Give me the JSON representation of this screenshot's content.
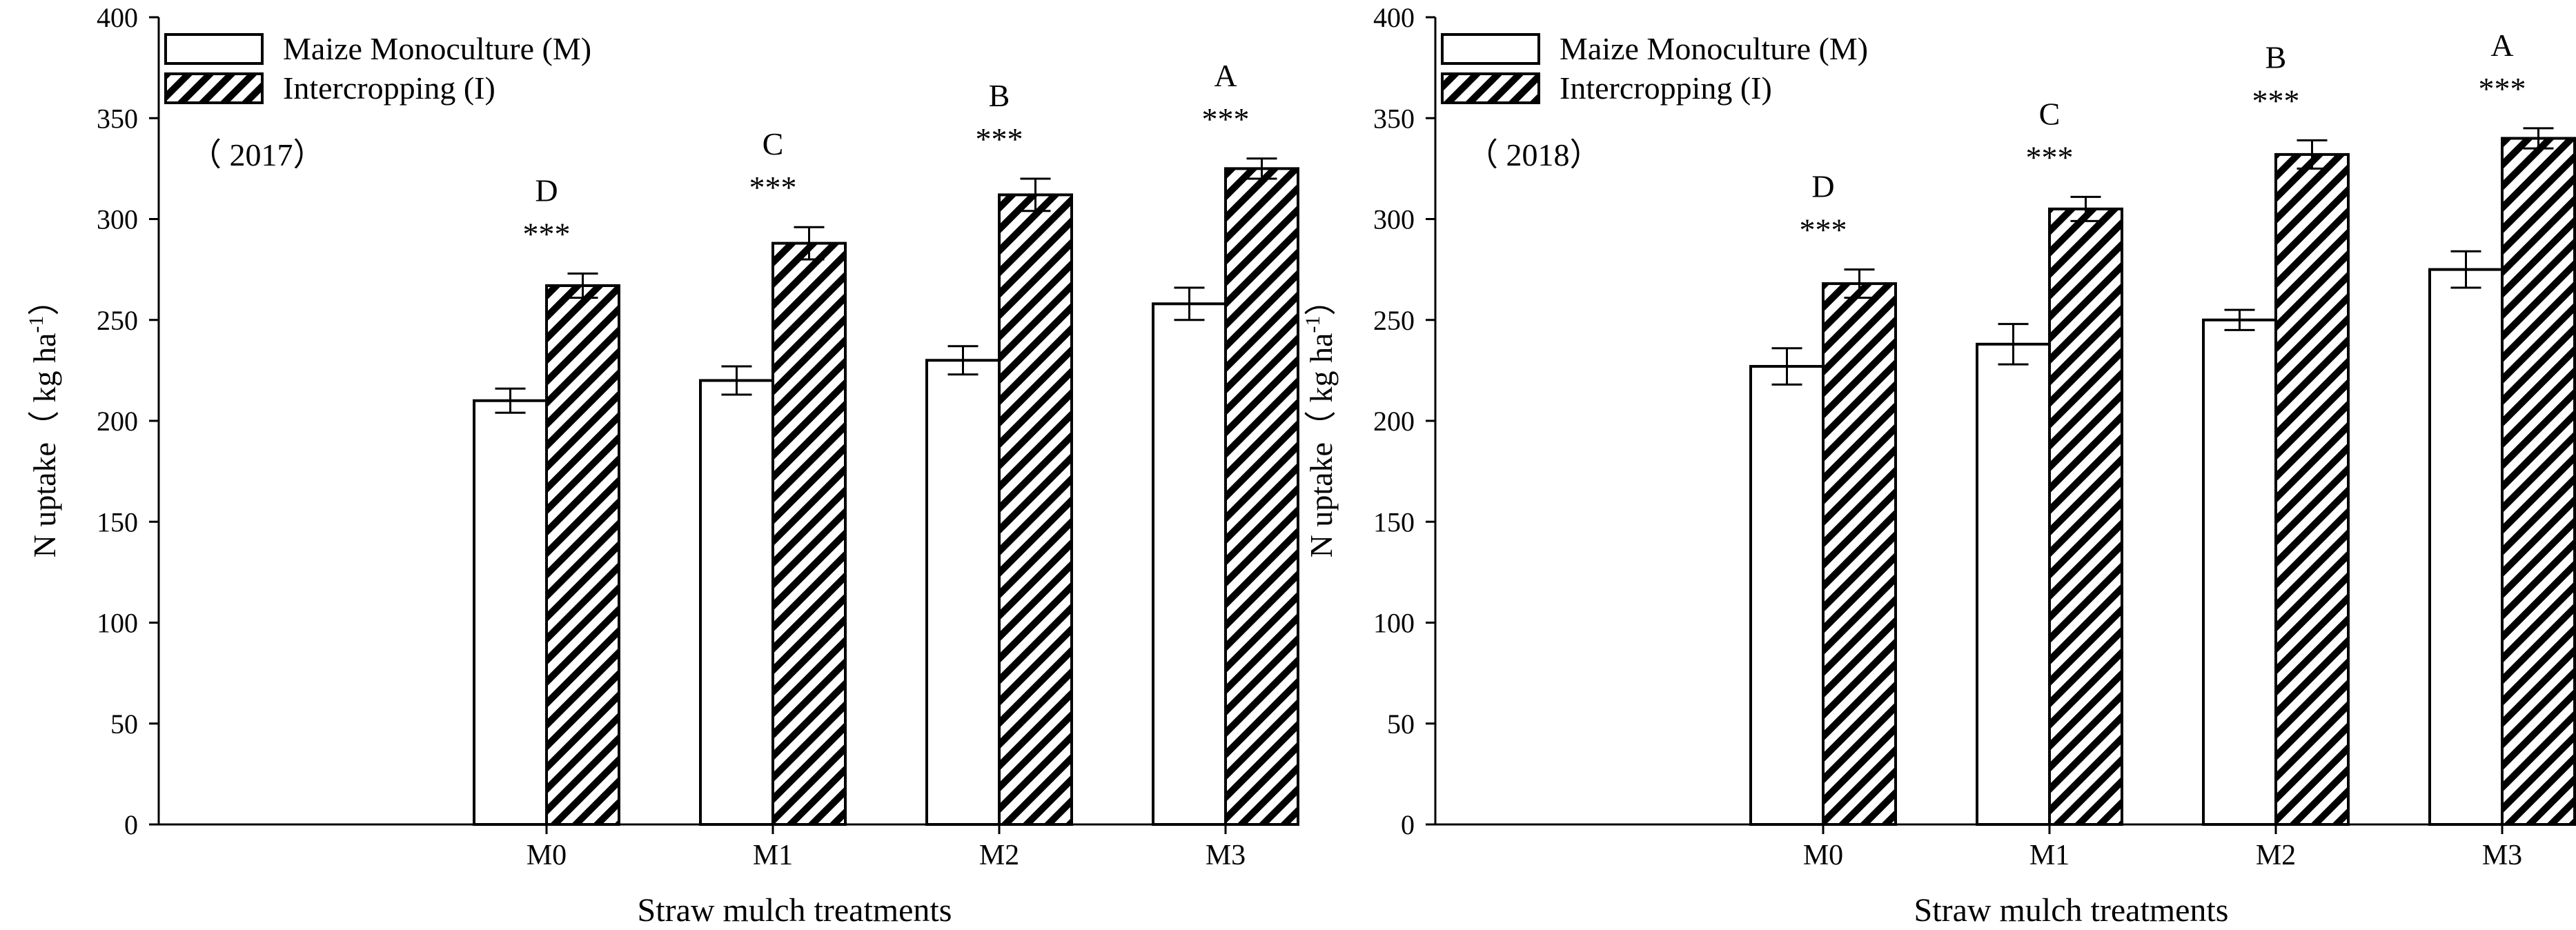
{
  "chart_data": [
    {
      "type": "bar",
      "panel_label": "（ 2017）",
      "categories": [
        "M0",
        "M1",
        "M2",
        "M3"
      ],
      "series": [
        {
          "name": "Maize Monoculture (M)",
          "pattern": "empty",
          "values": [
            210,
            220,
            230,
            258
          ],
          "errors": [
            6,
            7,
            7,
            8
          ]
        },
        {
          "name": "Intercropping (I)",
          "pattern": "hatched",
          "values": [
            267,
            288,
            312,
            325
          ],
          "errors": [
            6,
            8,
            8,
            5
          ]
        }
      ],
      "significance": [
        "***",
        "***",
        "***",
        "***"
      ],
      "letters": [
        "D",
        "C",
        "B",
        "A"
      ],
      "xlabel": "Straw mulch treatments",
      "ylabel": "N uptake（ kg ha",
      "ylabel_sup": "-1",
      "ylabel_close": "）",
      "ylim": [
        0,
        400
      ],
      "yticks": [
        0,
        50,
        100,
        150,
        200,
        250,
        300,
        350,
        400
      ],
      "legend_position": "top-left"
    },
    {
      "type": "bar",
      "panel_label": "（ 2018）",
      "categories": [
        "M0",
        "M1",
        "M2",
        "M3"
      ],
      "series": [
        {
          "name": "Maize Monoculture (M)",
          "pattern": "empty",
          "values": [
            227,
            238,
            250,
            275
          ],
          "errors": [
            9,
            10,
            5,
            9
          ]
        },
        {
          "name": "Intercropping (I)",
          "pattern": "hatched",
          "values": [
            268,
            305,
            332,
            340
          ],
          "errors": [
            7,
            6,
            7,
            5
          ]
        }
      ],
      "significance": [
        "***",
        "***",
        "***",
        "***"
      ],
      "letters": [
        "D",
        "C",
        "B",
        "A"
      ],
      "xlabel": "Straw mulch treatments",
      "ylabel": "N uptake（ kg ha",
      "ylabel_sup": "-1",
      "ylabel_close": "）",
      "ylim": [
        0,
        400
      ],
      "yticks": [
        0,
        50,
        100,
        150,
        200,
        250,
        300,
        350,
        400
      ],
      "legend_position": "top-left"
    }
  ]
}
